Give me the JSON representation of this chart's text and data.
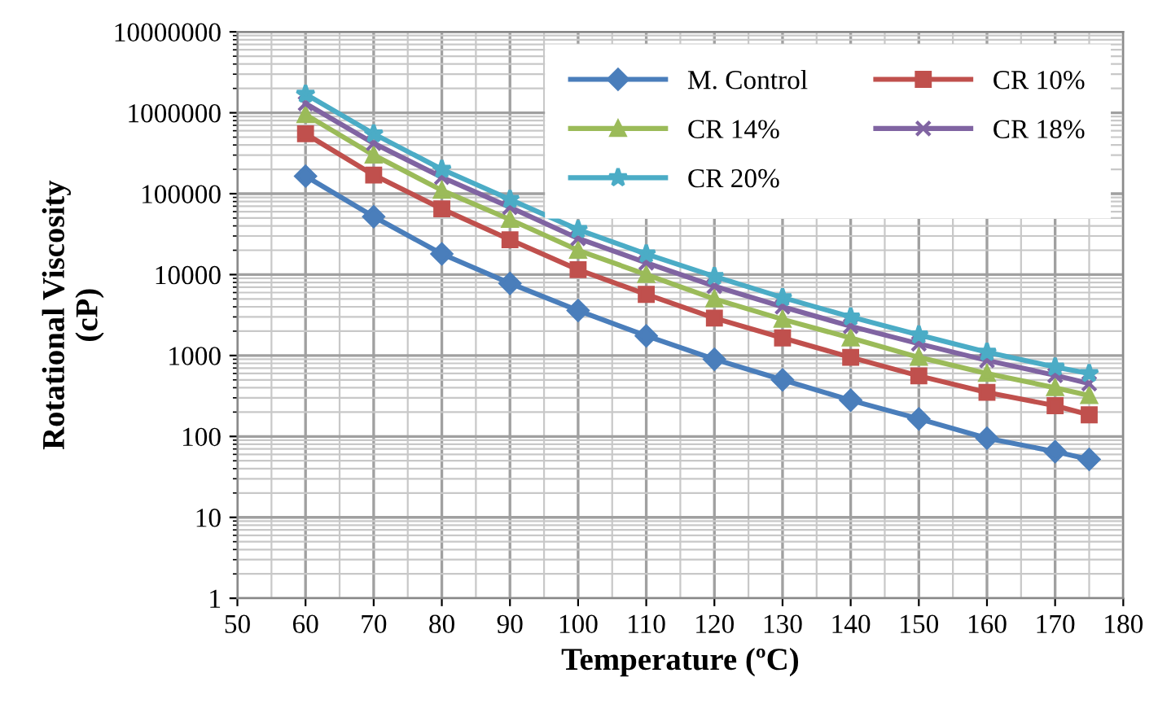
{
  "chart_data": {
    "type": "line",
    "xlabel": "Temperature (ºC)",
    "ylabel": "Rotational Viscosity\n(cP)",
    "x": [
      60,
      70,
      80,
      90,
      100,
      110,
      120,
      130,
      140,
      150,
      160,
      170,
      175
    ],
    "series": [
      {
        "name": "M. Control",
        "color": "#4a7ebb",
        "marker": "diamond",
        "values": [
          165000,
          52000,
          18000,
          7800,
          3600,
          1750,
          900,
          500,
          280,
          165,
          95,
          65,
          52
        ]
      },
      {
        "name": "CR 10%",
        "color": "#c0504d",
        "marker": "square",
        "values": [
          550000,
          170000,
          65000,
          27000,
          11500,
          5700,
          2900,
          1650,
          950,
          560,
          350,
          240,
          185
        ]
      },
      {
        "name": "CR 14%",
        "color": "#9bbb59",
        "marker": "triangle",
        "values": [
          950000,
          300000,
          110000,
          48000,
          20000,
          10000,
          5000,
          2800,
          1650,
          950,
          600,
          400,
          320
        ]
      },
      {
        "name": "CR 18%",
        "color": "#8064a2",
        "marker": "cross",
        "values": [
          1300000,
          420000,
          160000,
          68000,
          28000,
          14000,
          7200,
          4000,
          2300,
          1400,
          870,
          570,
          450
        ]
      },
      {
        "name": "CR 20%",
        "color": "#4bacc6",
        "marker": "star",
        "values": [
          1700000,
          550000,
          200000,
          85000,
          36000,
          18000,
          9500,
          5200,
          3000,
          1800,
          1100,
          720,
          600
        ]
      }
    ],
    "log": "y",
    "xlim": [
      50,
      180
    ],
    "xticks": [
      50,
      60,
      70,
      80,
      90,
      100,
      110,
      120,
      130,
      140,
      150,
      160,
      170,
      180
    ],
    "ylim": [
      1,
      10000000
    ],
    "yticks": [
      1,
      10,
      100,
      1000,
      10000,
      100000,
      1000000,
      10000000
    ],
    "grid": true,
    "legend": "top right",
    "line_style": "solid"
  }
}
